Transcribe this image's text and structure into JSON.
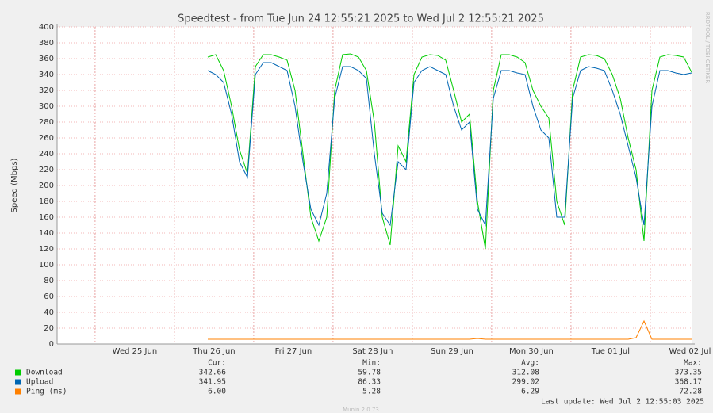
{
  "chart_data": {
    "type": "line",
    "title": "Speedtest - from Tue Jun 24 12:55:21 2025 to Wed Jul  2 12:55:21 2025",
    "y_label": "Speed (Mbps)",
    "side_text": "RRDTOOL / TOBI OETIKER",
    "footer": "Munin 2.0.73",
    "last_update": "Last update: Wed Jul  2 12:55:03 2025",
    "xlim": [
      0,
      192
    ],
    "xticks": [
      {
        "value": 23.5,
        "label": "Wed 25 Jun"
      },
      {
        "value": 47.5,
        "label": "Thu 26 Jun"
      },
      {
        "value": 71.5,
        "label": "Fri 27 Jun"
      },
      {
        "value": 95.5,
        "label": "Sat 28 Jun"
      },
      {
        "value": 119.5,
        "label": "Sun 29 Jun"
      },
      {
        "value": 143.5,
        "label": "Mon 30 Jun"
      },
      {
        "value": 167.5,
        "label": "Tue 01 Jul"
      },
      {
        "value": 191.5,
        "label": "Wed 02 Jul"
      }
    ],
    "ylim": [
      0,
      400
    ],
    "yticks": [
      0,
      20,
      40,
      60,
      80,
      100,
      120,
      140,
      160,
      180,
      200,
      220,
      240,
      260,
      280,
      300,
      320,
      340,
      360,
      380,
      400
    ],
    "grid": true,
    "x": [
      45.6,
      48,
      50.4,
      52.8,
      55.2,
      57.6,
      60,
      62.4,
      64.8,
      67.2,
      69.6,
      72,
      74.4,
      76.8,
      79.2,
      81.6,
      84,
      86.4,
      88.8,
      91.2,
      93.6,
      96,
      98.4,
      100.8,
      103.2,
      105.6,
      108,
      110.4,
      112.8,
      115.2,
      117.6,
      120,
      122.4,
      124.8,
      127.2,
      129.6,
      132,
      134.4,
      136.8,
      139.2,
      141.6,
      144,
      146.4,
      148.8,
      151.2,
      153.6,
      156,
      158.4,
      160.8,
      163.2,
      165.6,
      168,
      170.4,
      172.8,
      175.2,
      177.6,
      180,
      182.4,
      184.8,
      187.2,
      189.6,
      192
    ],
    "series": [
      {
        "name": "Download",
        "color": "#00cc00",
        "values": [
          362,
          365,
          345,
          300,
          245,
          215,
          350,
          365,
          365,
          362,
          358,
          320,
          240,
          160,
          130,
          160,
          320,
          365,
          366,
          362,
          345,
          280,
          160,
          125,
          250,
          230,
          340,
          362,
          365,
          364,
          358,
          320,
          280,
          290,
          180,
          120,
          320,
          365,
          365,
          362,
          355,
          320,
          300,
          285,
          180,
          150,
          320,
          362,
          365,
          364,
          360,
          340,
          310,
          260,
          220,
          130,
          320,
          362,
          365,
          364,
          362,
          343
        ]
      },
      {
        "name": "Upload",
        "color": "#0066b3",
        "values": [
          345,
          340,
          330,
          290,
          230,
          210,
          340,
          355,
          355,
          350,
          345,
          300,
          230,
          170,
          150,
          190,
          310,
          350,
          350,
          345,
          335,
          240,
          165,
          150,
          230,
          220,
          330,
          345,
          350,
          345,
          340,
          300,
          270,
          280,
          170,
          150,
          310,
          345,
          345,
          342,
          340,
          300,
          270,
          260,
          160,
          160,
          310,
          345,
          350,
          348,
          345,
          320,
          290,
          250,
          210,
          150,
          300,
          345,
          345,
          342,
          340,
          342
        ]
      },
      {
        "name": "Ping (ms)",
        "color": "#ff8000",
        "values": [
          6,
          6,
          6,
          6,
          6,
          6,
          6,
          6,
          6,
          6,
          6,
          6,
          6,
          6,
          6,
          6,
          6,
          6,
          6,
          6,
          6,
          6,
          6,
          6,
          6,
          6,
          6,
          6,
          6,
          6,
          6,
          6,
          6,
          6,
          7,
          6,
          6,
          6,
          6,
          6,
          6,
          6,
          6,
          6,
          6,
          6,
          6,
          6,
          6,
          6,
          6,
          6,
          6,
          6,
          8,
          29,
          6,
          6,
          6,
          6,
          6,
          6
        ]
      }
    ],
    "legend_table": {
      "headers": [
        "Cur:",
        "Min:",
        "Avg:",
        "Max:"
      ],
      "rows": [
        [
          "342.66",
          "59.78",
          "312.08",
          "373.35"
        ],
        [
          "341.95",
          "86.33",
          "299.02",
          "368.17"
        ],
        [
          "6.00",
          "5.28",
          "6.29",
          "72.28"
        ]
      ]
    }
  }
}
